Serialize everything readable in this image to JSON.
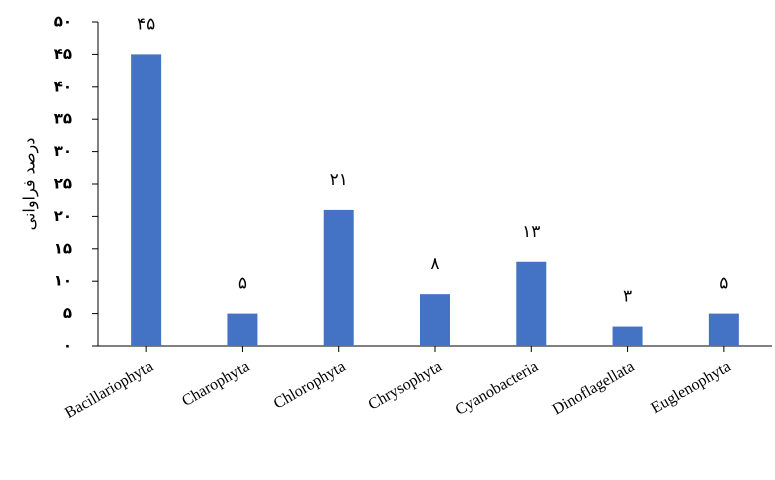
{
  "chart_data": {
    "type": "bar",
    "categories": [
      "Bacillariophyta",
      "Charophyta",
      "Chlorophyta",
      "Chrysophyta",
      "Cyanobacteria",
      "Dinoflagellata",
      "Euglenophyta"
    ],
    "values": [
      45,
      5,
      21,
      8,
      13,
      3,
      5
    ],
    "data_labels": [
      "۴۵",
      "۵",
      "۲۱",
      "۸",
      "۱۳",
      "۳",
      "۵"
    ],
    "ylabel": "درصد فراوانی",
    "ylim": [
      0,
      50
    ],
    "yticks": [
      0,
      5,
      10,
      15,
      20,
      25,
      30,
      35,
      40,
      45,
      50
    ],
    "ytick_labels": [
      "۰",
      "۵",
      "۱۰",
      "۱۵",
      "۲۰",
      "۲۵",
      "۳۰",
      "۳۵",
      "۴۰",
      "۴۵",
      "۵۰"
    ],
    "bar_color": "#4472C4",
    "grid": false,
    "legend": "none"
  }
}
